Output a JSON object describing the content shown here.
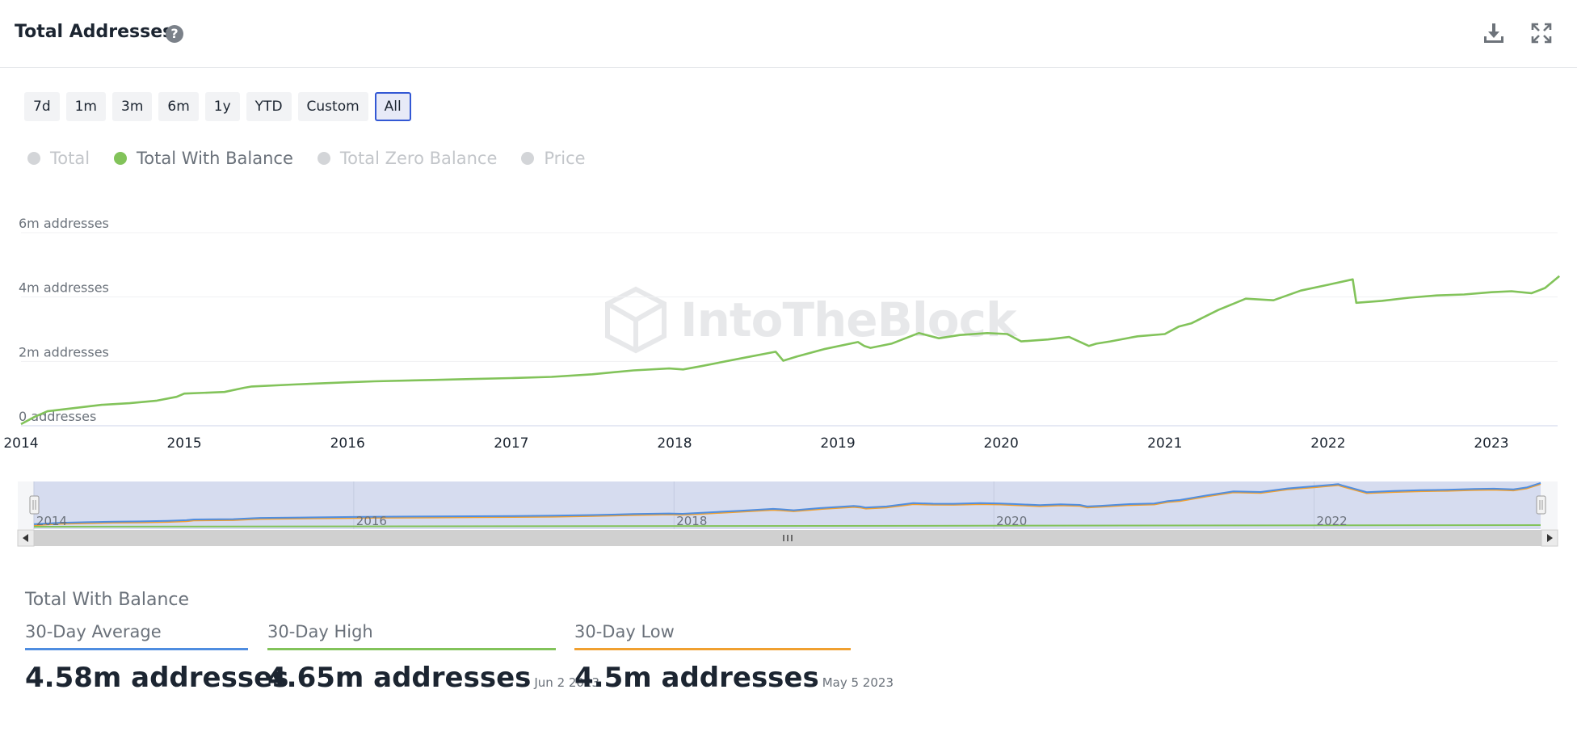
{
  "header": {
    "title": "Total Addresses",
    "help_icon": "question-circle-icon",
    "download_icon": "download-icon",
    "expand_icon": "expand-icon"
  },
  "ranges": [
    "7d",
    "1m",
    "3m",
    "6m",
    "1y",
    "YTD",
    "Custom",
    "All"
  ],
  "active_range": "All",
  "legend": [
    {
      "label": "Total",
      "active": false
    },
    {
      "label": "Total With Balance",
      "active": true
    },
    {
      "label": "Total Zero Balance",
      "active": false
    },
    {
      "label": "Price",
      "active": false
    }
  ],
  "watermark": "IntoTheBlock",
  "colors": {
    "line": "#82c35a",
    "nav_blue": "#4f8de0",
    "nav_orange": "#f0a030",
    "accent": "#3358d4",
    "navigator_bg": "#d6dcef"
  },
  "chart_data": {
    "type": "line",
    "series": [
      {
        "name": "Total With Balance",
        "x": [
          "2014-01-01",
          "2014-02-01",
          "2014-03-01",
          "2014-05-01",
          "2014-07-01",
          "2014-09-01",
          "2014-11-01",
          "2014-12-15",
          "2015-01-01",
          "2015-04-01",
          "2015-05-15",
          "2015-06-01",
          "2015-09-01",
          "2016-01-01",
          "2016-03-01",
          "2016-07-01",
          "2016-10-01",
          "2017-01-01",
          "2017-04-01",
          "2017-07-01",
          "2017-10-01",
          "2017-12-20",
          "2018-01-20",
          "2018-03-01",
          "2018-06-01",
          "2018-08-15",
          "2018-09-01",
          "2018-10-01",
          "2018-12-01",
          "2019-02-15",
          "2019-03-01",
          "2019-03-15",
          "2019-05-01",
          "2019-07-01",
          "2019-08-15",
          "2019-10-01",
          "2019-12-01",
          "2020-01-15",
          "2020-02-15",
          "2020-04-15",
          "2020-06-01",
          "2020-07-15",
          "2020-08-01",
          "2020-09-01",
          "2020-11-01",
          "2021-01-01",
          "2021-02-01",
          "2021-03-01",
          "2021-05-01",
          "2021-07-01",
          "2021-09-01",
          "2021-11-01",
          "2022-01-01",
          "2022-02-25",
          "2022-03-05",
          "2022-05-01",
          "2022-07-01",
          "2022-09-01",
          "2022-11-01",
          "2023-01-01",
          "2023-02-15",
          "2023-04-01",
          "2023-05-01",
          "2023-06-02"
        ],
        "values": [
          0.05,
          0.28,
          0.45,
          0.55,
          0.65,
          0.7,
          0.78,
          0.9,
          1.0,
          1.05,
          1.18,
          1.22,
          1.28,
          1.35,
          1.38,
          1.42,
          1.45,
          1.48,
          1.52,
          1.6,
          1.72,
          1.78,
          1.75,
          1.85,
          2.1,
          2.3,
          2.02,
          2.15,
          2.38,
          2.6,
          2.48,
          2.42,
          2.55,
          2.88,
          2.72,
          2.82,
          2.88,
          2.85,
          2.62,
          2.68,
          2.76,
          2.48,
          2.55,
          2.62,
          2.78,
          2.85,
          3.08,
          3.18,
          3.6,
          3.95,
          3.9,
          4.2,
          4.38,
          4.55,
          3.82,
          3.88,
          3.98,
          4.05,
          4.08,
          4.15,
          4.18,
          4.12,
          4.28,
          4.65
        ]
      }
    ],
    "x_ticks": [
      "2014",
      "2015",
      "2016",
      "2017",
      "2018",
      "2019",
      "2020",
      "2021",
      "2022",
      "2023"
    ],
    "y_ticks": [
      "0 addresses",
      "2m addresses",
      "4m addresses",
      "6m addresses"
    ],
    "ylim": [
      0,
      6
    ],
    "navigator_ticks": [
      "2014",
      "2016",
      "2018",
      "2020",
      "2022"
    ]
  },
  "stats": {
    "title": "Total With Balance",
    "items": [
      {
        "label": "30-Day Average",
        "value": "4.58m addresses",
        "date": "",
        "color": "#4f8de0"
      },
      {
        "label": "30-Day High",
        "value": "4.65m addresses",
        "date": "Jun 2 2023",
        "color": "#82c35a"
      },
      {
        "label": "30-Day Low",
        "value": "4.5m addresses",
        "date": "May 5 2023",
        "color": "#f0a030"
      }
    ]
  }
}
